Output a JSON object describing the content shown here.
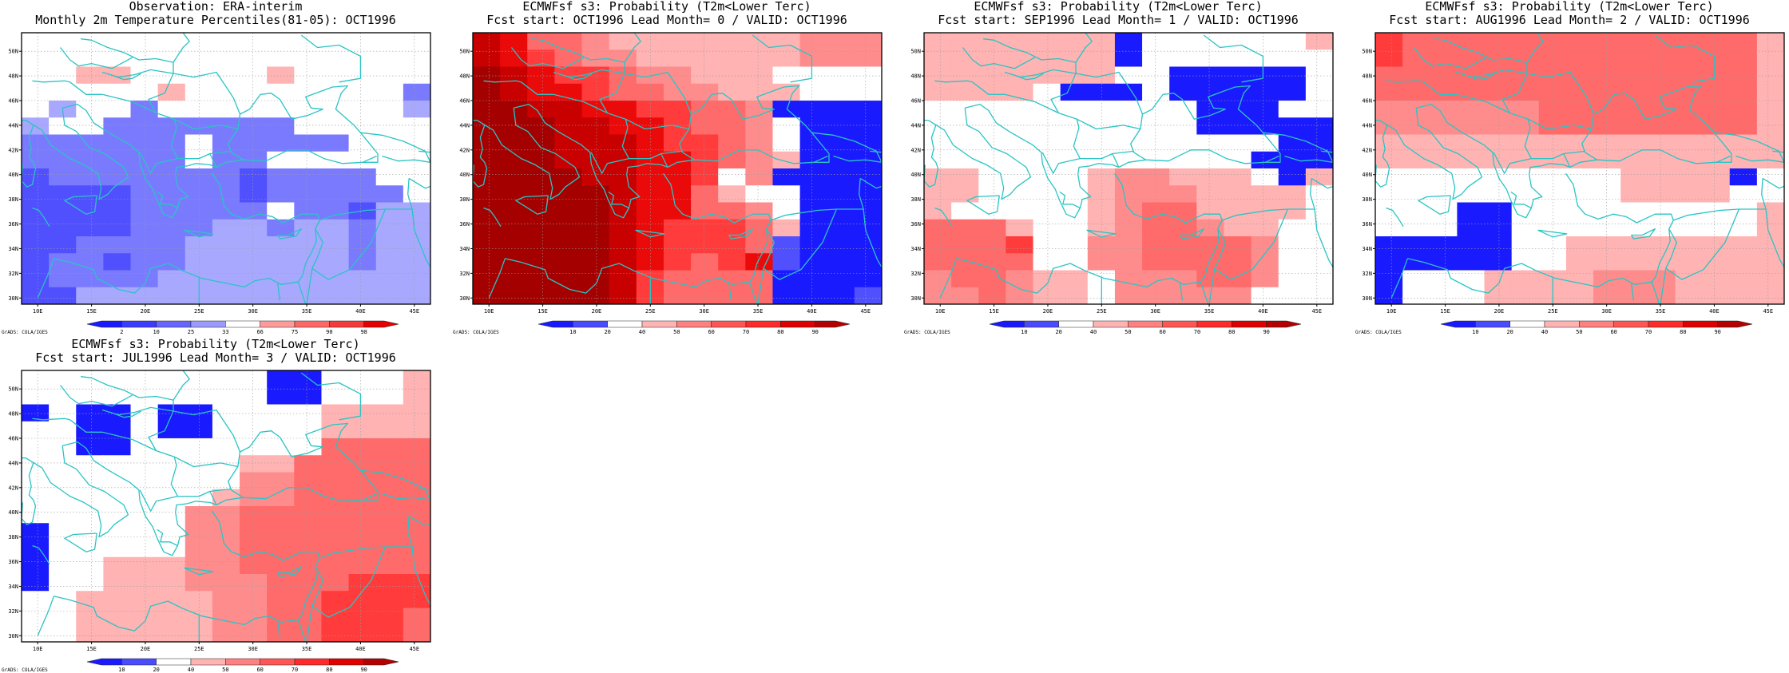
{
  "legend_sets": {
    "obs": {
      "labels": [
        "2",
        "10",
        "25",
        "33",
        "66",
        "75",
        "90",
        "98"
      ],
      "colors": [
        "#1a1aff",
        "#3c3cff",
        "#6666ff",
        "#9a9aff",
        "#ffffff",
        "#ff9a9a",
        "#ff6666",
        "#f53a3a",
        "#e60000"
      ]
    },
    "prob": {
      "labels": [
        "10",
        "20",
        "40",
        "50",
        "60",
        "70",
        "80",
        "90"
      ],
      "colors": [
        "#1a1aff",
        "#4a4aff",
        "#ffffff",
        "#ffb3b3",
        "#ff8080",
        "#ff5555",
        "#ff2a2a",
        "#e00000",
        "#b30000"
      ]
    }
  },
  "color_classes": {
    "W": "#ffffff",
    "B1": "#1a1aff",
    "B2": "#5050ff",
    "B3": "#7a7aff",
    "B4": "#a8a8ff",
    "R1": "#ffb3b3",
    "R2": "#ff8c8c",
    "R3": "#ff6a6a",
    "R4": "#ff3b3b",
    "R5": "#ea0a0a",
    "R6": "#c80000",
    "R7": "#a50000"
  },
  "map_axes": {
    "lon_ticks": [
      "10E",
      "15E",
      "20E",
      "25E",
      "30E",
      "35E",
      "40E",
      "45E"
    ],
    "lat_ticks": [
      "30N",
      "32N",
      "34N",
      "36N",
      "38N",
      "40N",
      "42N",
      "44N",
      "46N",
      "48N",
      "50N"
    ]
  },
  "credit": "GrADS: COLA/IGES",
  "panels": [
    {
      "title1": "Observation: ERA-interim",
      "title2": "Monthly 2m Temperature Percentiles(81-05): OCT1996",
      "legend": "obs",
      "grid": [
        "W W W W W W W W W W W W W W W",
        "W W W W W W W W W W W W W W W",
        "W W R1 R1 W W W W W R1 W W W W W",
        "W W W W W R1 W W W W W W W W B3",
        "W B4 W W B3 W W W W W W W W W B4",
        "B4 W W B3 B3 B3 B3 B3 B3 B3 W W W W W",
        "B3 B3 B3 B3 B3 B3 W B3 B3 B3 B3 B3 W W W",
        "B3 B3 B3 B3 B3 B3 W B3 B3 W W W W W W",
        "B2 B3 B3 B3 B3 B3 B3 B3 B2 B3 B3 B3 B3 W W",
        "B2 B2 B2 B2 B3 B3 B3 B3 B2 B3 B3 B3 B3 B3 W",
        "B2 B2 B2 B2 B3 B3 B3 B3 B3 W B3 B3 B2 B4 B4",
        "B2 B2 B2 B2 B3 B3 B3 B4 B4 B3 B4 B4 B3 B4 B4",
        "B2 B2 B3 B3 B3 B3 B4 B4 B4 B4 B4 B4 B3 B4 B4",
        "B2 B3 B3 B2 B3 B3 B4 B4 B4 B4 B4 B4 B3 B4 B4",
        "B2 B3 B3 B3 B3 B4 B4 B4 B4 B4 B4 B4 B4 B4 B4",
        "B2 B2 B4 B4 B4 B4 B4 B4 B4 B4 B4 B4 B4 B4 B4"
      ]
    },
    {
      "title1": "ECMWFsf s3: Probability (T2m<Lower Terc)",
      "title2": "Fcst start: OCT1996  Lead Month= 0 / VALID: OCT1996",
      "legend": "prob",
      "grid": [
        "R6 R5 R3 R3 R2 R1 R1 R1 R1 R1 R1 R1 R2 R2 R2",
        "R6 R5 R4 R3 R2 R2 R1 R1 R1 R1 R1 R1 R2 R2 R2",
        "R7 R6 R5 R4 R4 R3 R2 R2 R1 R1 R1 W W W W",
        "R7 R6 R5 R5 R4 R3 R3 R2 R2 R1 R1 R1 W W W",
        "R7 R7 R6 R6 R5 R5 R4 R4 R3 R3 R2 B1 B1 B1 B1",
        "R7 R7 R7 R6 R6 R5 R5 R4 R3 R3 R2 W B1 B1 B1",
        "R7 R7 R7 R6 R6 R6 R5 R4 R4 R3 R2 W B1 B1 B1",
        "R7 R7 R7 R6 R6 R6 R5 R5 R4 R3 R2 R1 B1 B1 B1",
        "R7 R7 R7 R7 R6 R6 R5 R5 R4 W R2 B1 B1 B1 B1",
        "R7 R7 R7 R7 R7 R6 R5 R5 R3 R1 W W B1 B1 B1",
        "R7 R7 R7 R7 R7 R6 R5 R5 R3 R3 R2 W B1 B1 B1",
        "R7 R7 R7 R7 R7 R6 R5 R4 R4 R4 R3 R1 B1 B1 B1",
        "R7 R7 R7 R7 R7 R6 R5 R4 R4 R4 R3 B2 B1 B1 B1",
        "R7 R7 R7 R7 R7 R6 R5 R4 R3 R4 R5 B2 B1 B1 B1",
        "R7 R7 R7 R7 R7 R6 R4 R3 R3 R3 R3 B1 B1 B1 B1",
        "R7 R7 R7 R7 R7 R6 R4 R3 R3 R3 R3 B1 B1 B1 B2"
      ]
    },
    {
      "title1": "ECMWFsf s3: Probability (T2m<Lower Terc)",
      "title2": "Fcst start: SEP1996  Lead Month= 1 / VALID: OCT1996",
      "legend": "prob",
      "grid": [
        "R1 R1 R1 R1 R1 R1 R1 B1 W W W W W W R1",
        "R1 R1 R1 R1 R1 R1 R1 B1 W W W W W W W",
        "R1 R1 R1 R1 R1 R1 R1 W W B1 B1 B1 B1 B1 W",
        "R1 R1 R1 R1 W B1 B1 B1 W B1 B1 B1 B1 B1 W",
        "W W W W W W W W W W B1 B1 B1 W W",
        "W W W W W W W W W W B1 B1 B1 B1 B1",
        "W W W W W W W W W W W W W B1 B1",
        "W W W W W W W W W W W W B1 B1 B1",
        "R1 R1 W W W W R1 R2 R2 R1 R1 R1 W B1 R1",
        "R1 R1 W W W W R1 R2 R2 R2 R1 R1 R1 R1 W",
        "R1 W W W W W R1 R2 R3 R3 R1 R1 R1 R1 W",
        "R3 R3 R3 R1 W W R1 R2 R3 R3 R2 R1 R1 W W",
        "R3 R3 R3 R4 W W R2 R2 R3 R3 R3 R3 R2 W W",
        "R3 R3 R3 R3 W W R2 R2 R3 R3 R3 R3 R2 W W",
        "R2 R3 R3 R2 R1 R1 W R2 R2 R2 R3 R3 R2 W W",
        "R2 R2 R3 R2 R1 R1 W R2 R2 R2 R2 R2 W W W"
      ]
    },
    {
      "title1": "ECMWFsf s3: Probability (T2m<Lower Terc)",
      "title2": "Fcst start: AUG1996  Lead Month= 2 / VALID: OCT1996",
      "legend": "prob",
      "grid": [
        "R4 R3 R3 R3 R3 R3 R3 R3 R3 R3 R3 R3 R3 R3 R1",
        "R4 R3 R3 R3 R3 R3 R3 R3 R3 R3 R3 R3 R3 R3 R1",
        "R3 R3 R3 R3 R3 R3 R3 R3 R3 R3 R3 R3 R3 R3 R1",
        "R3 R3 R3 R3 R3 R3 R3 R3 R3 R3 R3 R3 R3 R3 R1",
        "R2 R2 R2 R2 R2 R2 R3 R3 R3 R3 R3 R3 R3 R3 R1",
        "R2 R2 R2 R2 R2 R2 R3 R3 R3 R3 R3 R3 R3 R3 R1",
        "R1 R1 R1 R1 R1 R1 R1 R1 R1 R1 R1 R1 R1 R1 R1",
        "R1 R1 R1 R1 R1 R1 R1 R1 R1 R1 R1 R1 R1 R1 R1",
        "W W W W W W W W W R1 R1 R1 R1 B1 W",
        "W W W W W W W W W R1 R1 R1 R1 W W",
        "W W W B1 B1 W W W W W W W W W R1",
        "W W W B1 B1 W W W W W W W W W R1",
        "B1 B1 B1 B1 B1 W W R1 R1 R1 R1 R1 R1 R1 R1",
        "B1 B1 B1 B1 B1 W W R1 R1 R1 R1 R1 R1 R1 R1",
        "B1 W W W R1 R1 R1 R1 R2 R2 R2 R1 R1 R1 R1",
        "B1 W W W R1 R1 R1 R1 R2 R2 R2 R1 R1 R1 R1"
      ]
    },
    {
      "title1": "ECMWFsf s3: Probability (T2m<Lower Terc)",
      "title2": "Fcst start: JUL1996  Lead Month= 3 / VALID: OCT1996",
      "legend": "prob",
      "grid": [
        "W W W W W W W W W B1 B1 W W W R1",
        "W W W W W W W W W B1 B1 W W W R1",
        "B1 W B1 B1 W B1 B1 W W W W R1 R1 R1 R1",
        "W W B1 B1 W B1 B1 W W W W R1 R1 R1 R1",
        "W W B1 B1 W W W W W W W R3 R3 R3 R3",
        "W W W W W W W W R1 R1 R3 R3 R3 R3 R3",
        "W W W W W W W W R2 R2 R3 R3 R3 R3 R3",
        "W W W W W W W R1 R2 R2 R3 R3 R3 R3 R3",
        "W W W W W W R2 R2 R3 R3 R3 R3 R3 R3 R3",
        "B1 W W W W W R2 R2 R3 R3 R3 R3 R3 R3 R3",
        "B1 W W W W W R2 R2 R3 R3 R3 R3 R3 R3 R3",
        "B1 W W R1 R1 R1 R2 R2 R3 R3 R3 R3 R3 R3 R3",
        "B1 W W R1 R1 R1 R2 R2 R2 R3 R3 R3 R4 R4 R4",
        "W W R1 R1 R1 R1 R1 R2 R2 R3 R3 R4 R4 R4 R4",
        "W W R1 R1 R1 R1 R1 R2 R2 R3 R3 R4 R4 R4 R3",
        "W W R1 R1 R1 R1 R1 R2 R2 R3 R3 R4 R4 R4 R3"
      ]
    }
  ]
}
